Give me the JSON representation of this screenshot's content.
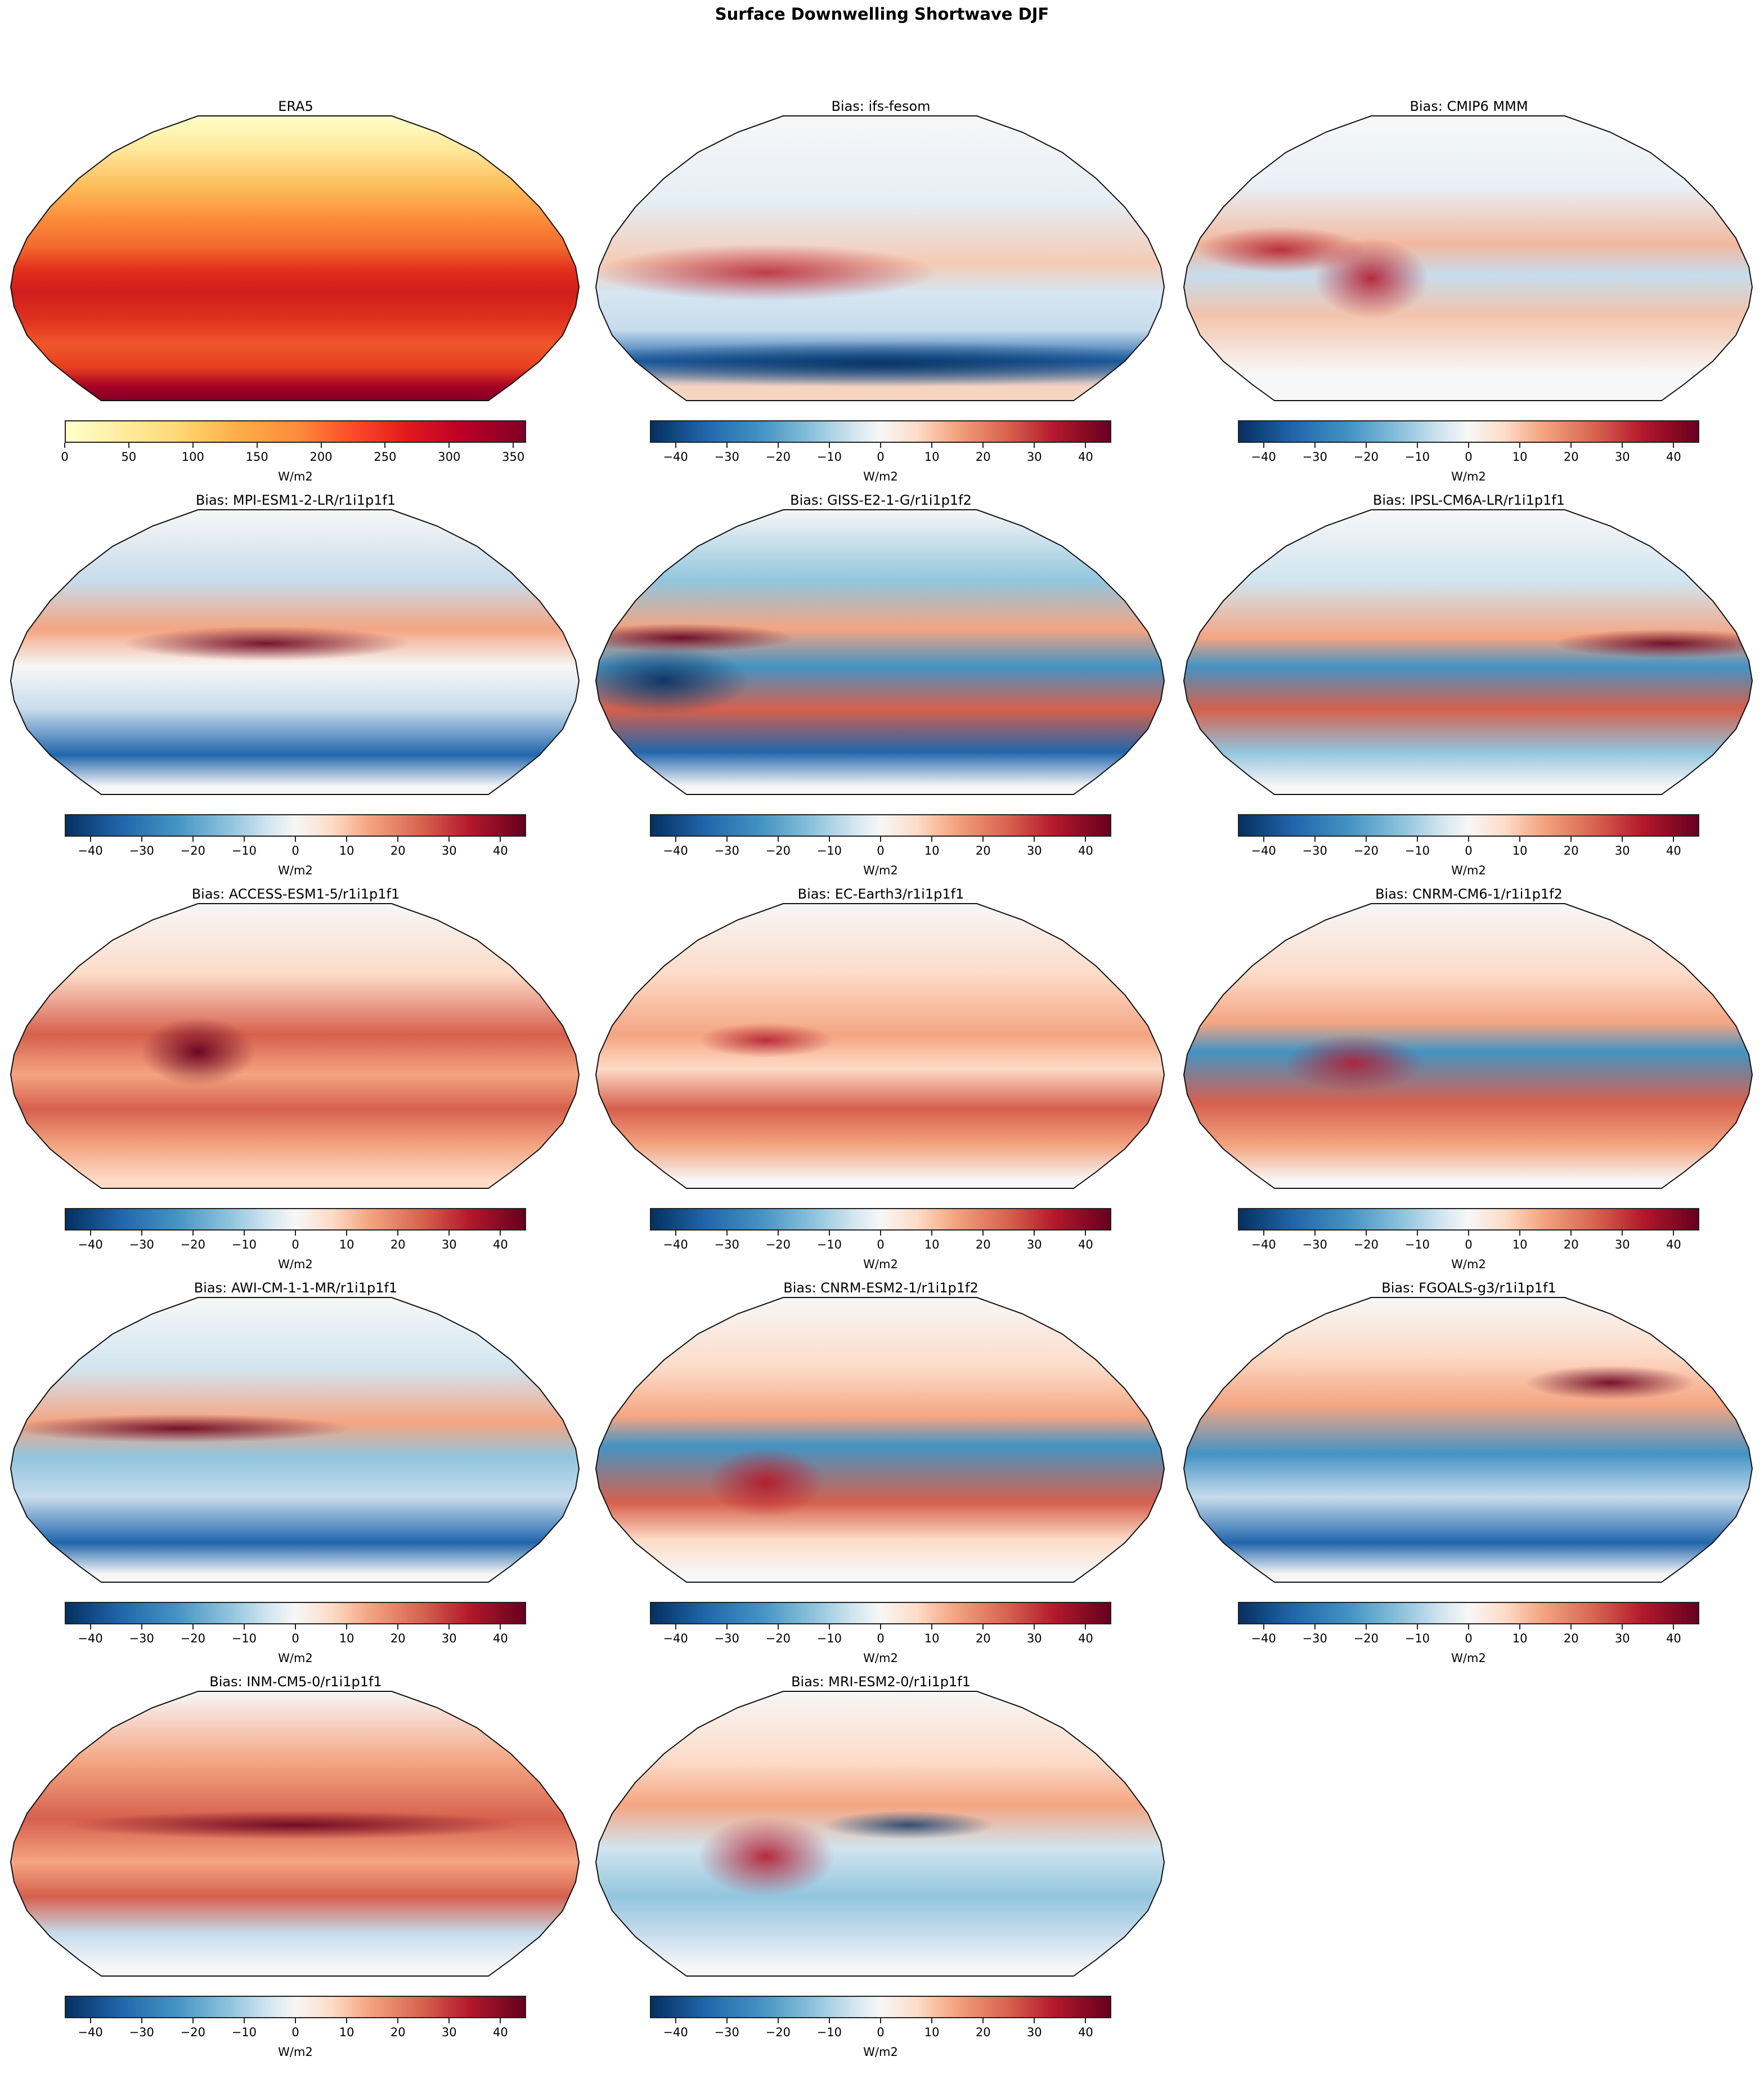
{
  "figure": {
    "title": "Surface Downwelling Shortwave DJF"
  },
  "chart_data": [
    {
      "type": "heatmap",
      "title": "ERA5",
      "projection": "Robinson",
      "colormap": "YlOrRd",
      "units": "W/m2",
      "vmin": 0,
      "vmax": 360,
      "ticks": [
        0,
        50,
        100,
        150,
        200,
        250,
        300,
        350
      ],
      "description": "Climatological DJF surface downwelling shortwave; low (~0-50) in northern high latitudes, high (~300-360) over Antarctica and southern subtropics"
    },
    {
      "type": "heatmap",
      "title": "Bias: ifs-fesom",
      "projection": "Robinson",
      "colormap": "RdBu_r",
      "units": "W/m2",
      "vmin": -45,
      "vmax": 45,
      "ticks": [
        -40,
        -30,
        -20,
        -10,
        0,
        10,
        20,
        30,
        40
      ]
    },
    {
      "type": "heatmap",
      "title": "Bias: CMIP6 MMM",
      "projection": "Robinson",
      "colormap": "RdBu_r",
      "units": "W/m2",
      "vmin": -45,
      "vmax": 45,
      "ticks": [
        -40,
        -30,
        -20,
        -10,
        0,
        10,
        20,
        30,
        40
      ]
    },
    {
      "type": "heatmap",
      "title": "Bias: MPI-ESM1-2-LR/r1i1p1f1",
      "projection": "Robinson",
      "colormap": "RdBu_r",
      "units": "W/m2",
      "vmin": -45,
      "vmax": 45,
      "ticks": [
        -40,
        -30,
        -20,
        -10,
        0,
        10,
        20,
        30,
        40
      ]
    },
    {
      "type": "heatmap",
      "title": "Bias: GISS-E2-1-G/r1i1p1f2",
      "projection": "Robinson",
      "colormap": "RdBu_r",
      "units": "W/m2",
      "vmin": -45,
      "vmax": 45,
      "ticks": [
        -40,
        -30,
        -20,
        -10,
        0,
        10,
        20,
        30,
        40
      ]
    },
    {
      "type": "heatmap",
      "title": "Bias: IPSL-CM6A-LR/r1i1p1f1",
      "projection": "Robinson",
      "colormap": "RdBu_r",
      "units": "W/m2",
      "vmin": -45,
      "vmax": 45,
      "ticks": [
        -40,
        -30,
        -20,
        -10,
        0,
        10,
        20,
        30,
        40
      ]
    },
    {
      "type": "heatmap",
      "title": "Bias: ACCESS-ESM1-5/r1i1p1f1",
      "projection": "Robinson",
      "colormap": "RdBu_r",
      "units": "W/m2",
      "vmin": -45,
      "vmax": 45,
      "ticks": [
        -40,
        -30,
        -20,
        -10,
        0,
        10,
        20,
        30,
        40
      ]
    },
    {
      "type": "heatmap",
      "title": "Bias: EC-Earth3/r1i1p1f1",
      "projection": "Robinson",
      "colormap": "RdBu_r",
      "units": "W/m2",
      "vmin": -45,
      "vmax": 45,
      "ticks": [
        -40,
        -30,
        -20,
        -10,
        0,
        10,
        20,
        30,
        40
      ]
    },
    {
      "type": "heatmap",
      "title": "Bias: CNRM-CM6-1/r1i1p1f2",
      "projection": "Robinson",
      "colormap": "RdBu_r",
      "units": "W/m2",
      "vmin": -45,
      "vmax": 45,
      "ticks": [
        -40,
        -30,
        -20,
        -10,
        0,
        10,
        20,
        30,
        40
      ]
    },
    {
      "type": "heatmap",
      "title": "Bias: AWI-CM-1-1-MR/r1i1p1f1",
      "projection": "Robinson",
      "colormap": "RdBu_r",
      "units": "W/m2",
      "vmin": -45,
      "vmax": 45,
      "ticks": [
        -40,
        -30,
        -20,
        -10,
        0,
        10,
        20,
        30,
        40
      ]
    },
    {
      "type": "heatmap",
      "title": "Bias: CNRM-ESM2-1/r1i1p1f2",
      "projection": "Robinson",
      "colormap": "RdBu_r",
      "units": "W/m2",
      "vmin": -45,
      "vmax": 45,
      "ticks": [
        -40,
        -30,
        -20,
        -10,
        0,
        10,
        20,
        30,
        40
      ]
    },
    {
      "type": "heatmap",
      "title": "Bias: FGOALS-g3/r1i1p1f1",
      "projection": "Robinson",
      "colormap": "RdBu_r",
      "units": "W/m2",
      "vmin": -45,
      "vmax": 45,
      "ticks": [
        -40,
        -30,
        -20,
        -10,
        0,
        10,
        20,
        30,
        40
      ]
    },
    {
      "type": "heatmap",
      "title": "Bias: INM-CM5-0/r1i1p1f1",
      "projection": "Robinson",
      "colormap": "RdBu_r",
      "units": "W/m2",
      "vmin": -45,
      "vmax": 45,
      "ticks": [
        -40,
        -30,
        -20,
        -10,
        0,
        10,
        20,
        30,
        40
      ]
    },
    {
      "type": "heatmap",
      "title": "Bias: MRI-ESM2-0/r1i1p1f1",
      "projection": "Robinson",
      "colormap": "RdBu_r",
      "units": "W/m2",
      "vmin": -45,
      "vmax": 45,
      "ticks": [
        -40,
        -30,
        -20,
        -10,
        0,
        10,
        20,
        30,
        40
      ]
    }
  ],
  "panels": [
    {
      "title": "ERA5",
      "cbar": "seq",
      "units": "W/m2",
      "ticks": [
        "0",
        "50",
        "100",
        "150",
        "200",
        "250",
        "300",
        "350"
      ],
      "tick_pos": [
        0,
        13.89,
        27.78,
        41.67,
        55.56,
        69.44,
        83.33,
        97.22
      ]
    },
    {
      "title": "Bias: ifs-fesom",
      "cbar": "div",
      "units": "W/m2"
    },
    {
      "title": "Bias: CMIP6 MMM",
      "cbar": "div",
      "units": "W/m2"
    },
    {
      "title": "Bias: MPI-ESM1-2-LR/r1i1p1f1",
      "cbar": "div",
      "units": "W/m2"
    },
    {
      "title": "Bias: GISS-E2-1-G/r1i1p1f2",
      "cbar": "div",
      "units": "W/m2"
    },
    {
      "title": "Bias: IPSL-CM6A-LR/r1i1p1f1",
      "cbar": "div",
      "units": "W/m2"
    },
    {
      "title": "Bias: ACCESS-ESM1-5/r1i1p1f1",
      "cbar": "div",
      "units": "W/m2"
    },
    {
      "title": "Bias: EC-Earth3/r1i1p1f1",
      "cbar": "div",
      "units": "W/m2"
    },
    {
      "title": "Bias: CNRM-CM6-1/r1i1p1f2",
      "cbar": "div",
      "units": "W/m2"
    },
    {
      "title": "Bias: AWI-CM-1-1-MR/r1i1p1f1",
      "cbar": "div",
      "units": "W/m2"
    },
    {
      "title": "Bias: CNRM-ESM2-1/r1i1p1f2",
      "cbar": "div",
      "units": "W/m2"
    },
    {
      "title": "Bias: FGOALS-g3/r1i1p1f1",
      "cbar": "div",
      "units": "W/m2"
    },
    {
      "title": "Bias: INM-CM5-0/r1i1p1f1",
      "cbar": "div",
      "units": "W/m2"
    },
    {
      "title": "Bias: MRI-ESM2-0/r1i1p1f1",
      "cbar": "div",
      "units": "W/m2"
    }
  ],
  "div_ticks": {
    "labels": [
      "−40",
      "−30",
      "−20",
      "−10",
      "0",
      "10",
      "20",
      "30",
      "40"
    ],
    "pos": [
      5.56,
      16.67,
      27.78,
      38.89,
      50,
      61.11,
      72.22,
      83.33,
      94.44
    ]
  },
  "colors": {
    "seq_low": "#ffffcc",
    "seq_high": "#800026",
    "div_low": "#053061",
    "div_mid": "#f7f7f7",
    "div_high": "#67001f"
  }
}
